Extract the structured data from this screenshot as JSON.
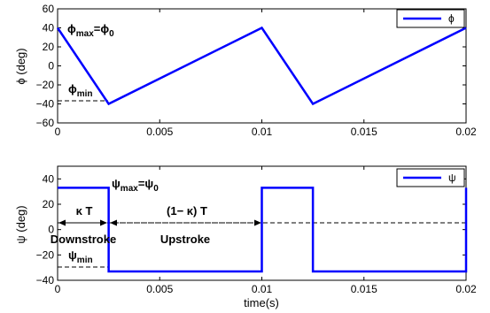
{
  "chart_data": [
    {
      "type": "line",
      "xlim": [
        0,
        0.02
      ],
      "ylim": [
        -60,
        60
      ],
      "xticks": [
        "0",
        "0.005",
        "0.01",
        "0.015",
        "0.02"
      ],
      "xtick_values": [
        0,
        0.005,
        0.01,
        0.015,
        0.02
      ],
      "yticks": [
        "60",
        "40",
        "20",
        "0",
        "−20",
        "−40",
        "−60"
      ],
      "ytick_values": [
        60,
        40,
        20,
        0,
        -20,
        -40,
        -60
      ],
      "ylabel": "ϕ (deg)",
      "xlabel": "",
      "grid": false,
      "legend_position": "top-right",
      "series": [
        {
          "name": "ϕ",
          "color": "#0000ff",
          "x": [
            0,
            0.0025,
            0.01,
            0.0125,
            0.02
          ],
          "y": [
            40,
            -40,
            40,
            -40,
            40
          ]
        }
      ],
      "annotations": {
        "max_main": "ϕ",
        "max_sub": "max",
        "max_rest": "=ϕ",
        "max_sub2": "0",
        "min_main": "ϕ",
        "min_sub": "min"
      }
    },
    {
      "type": "line",
      "xlim": [
        0,
        0.02
      ],
      "ylim": [
        -40,
        50
      ],
      "xticks": [
        "0",
        "0.005",
        "0.01",
        "0.015",
        "0.02"
      ],
      "xtick_values": [
        0,
        0.005,
        0.01,
        0.015,
        0.02
      ],
      "yticks": [
        "40",
        "20",
        "0",
        "−20",
        "−40"
      ],
      "ytick_values": [
        40,
        20,
        0,
        -20,
        -40
      ],
      "ylabel": "ψ (deg)",
      "xlabel": "time(s)",
      "grid": false,
      "legend_position": "top-right",
      "series": [
        {
          "name": "ψ",
          "color": "#0000ff",
          "x": [
            0,
            0.0025,
            0.0025,
            0.01,
            0.01,
            0.0125,
            0.0125,
            0.02,
            0.02
          ],
          "y": [
            33,
            33,
            -33,
            -33,
            33,
            33,
            -33,
            -33,
            33
          ]
        }
      ],
      "annotations": {
        "max_main": "ψ",
        "max_sub": "max",
        "max_rest": "=ψ",
        "max_sub2": "0",
        "min_main": "ψ",
        "min_sub": "min",
        "kappa_T": "κ T",
        "one_minus_kappa_T": "(1− κ) T",
        "downstroke": "Downstroke",
        "upstroke": "Upstroke"
      }
    }
  ]
}
